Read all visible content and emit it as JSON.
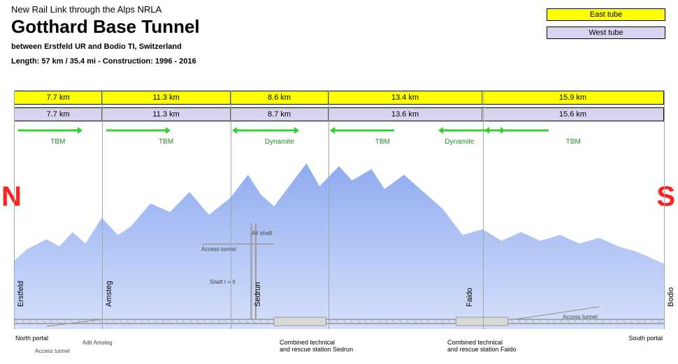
{
  "header": {
    "subtitle": "New Rail Link through the Alps NRLA",
    "title": "Gotthard Base Tunnel",
    "meta_line1": "between Erstfeld UR and Bodio TI, Switzerland",
    "meta_line2": "Length: 57 km / 35.4 mi   -   Construction: 1996 - 2016"
  },
  "legend": {
    "east": "East tube",
    "west": "West tube",
    "east_color": "#ffff00",
    "west_color": "#d8d4f0"
  },
  "east_segments": [
    {
      "km": "7.7 km",
      "frac": 0.135
    },
    {
      "km": "11.3 km",
      "frac": 0.198
    },
    {
      "km": "8.6 km",
      "frac": 0.151
    },
    {
      "km": "13.4 km",
      "frac": 0.237
    },
    {
      "km": "15.9 km",
      "frac": 0.279
    }
  ],
  "west_segments": [
    {
      "km": "7.7 km",
      "frac": 0.135
    },
    {
      "km": "11.3 km",
      "frac": 0.198
    },
    {
      "km": "8.7 km",
      "frac": 0.151
    },
    {
      "km": "13.6 km",
      "frac": 0.237
    },
    {
      "km": "15.6 km",
      "frac": 0.279
    }
  ],
  "method_segments": [
    {
      "label": "TBM",
      "start": 0.0,
      "end": 0.135,
      "dir": "right"
    },
    {
      "label": "TBM",
      "start": 0.135,
      "end": 0.333,
      "dir": "right"
    },
    {
      "label": "Dynamite",
      "start": 0.333,
      "end": 0.484,
      "dir": "both"
    },
    {
      "label": "TBM",
      "start": 0.484,
      "end": 0.65,
      "dir": "left"
    },
    {
      "label": "Dynamite",
      "start": 0.65,
      "end": 0.721,
      "dir": "both"
    },
    {
      "label": "TBM",
      "start": 0.721,
      "end": 1.0,
      "dir": "left"
    }
  ],
  "vline_positions": [
    0.0,
    0.135,
    0.333,
    0.484,
    0.721,
    1.0
  ],
  "method_color": "#32d032",
  "terrain": {
    "fill_top": "#8fabf0",
    "fill_bottom": "#d6e0fa",
    "points": [
      [
        0.0,
        0.7
      ],
      [
        0.02,
        0.62
      ],
      [
        0.05,
        0.55
      ],
      [
        0.07,
        0.6
      ],
      [
        0.09,
        0.5
      ],
      [
        0.11,
        0.58
      ],
      [
        0.135,
        0.4
      ],
      [
        0.16,
        0.52
      ],
      [
        0.18,
        0.46
      ],
      [
        0.21,
        0.3
      ],
      [
        0.24,
        0.36
      ],
      [
        0.27,
        0.22
      ],
      [
        0.3,
        0.38
      ],
      [
        0.333,
        0.26
      ],
      [
        0.36,
        0.1
      ],
      [
        0.38,
        0.24
      ],
      [
        0.4,
        0.32
      ],
      [
        0.42,
        0.2
      ],
      [
        0.45,
        0.02
      ],
      [
        0.47,
        0.18
      ],
      [
        0.5,
        0.04
      ],
      [
        0.52,
        0.14
      ],
      [
        0.55,
        0.06
      ],
      [
        0.57,
        0.2
      ],
      [
        0.6,
        0.1
      ],
      [
        0.63,
        0.22
      ],
      [
        0.66,
        0.34
      ],
      [
        0.69,
        0.52
      ],
      [
        0.721,
        0.48
      ],
      [
        0.75,
        0.56
      ],
      [
        0.78,
        0.5
      ],
      [
        0.81,
        0.56
      ],
      [
        0.84,
        0.52
      ],
      [
        0.87,
        0.58
      ],
      [
        0.9,
        0.54
      ],
      [
        0.93,
        0.6
      ],
      [
        0.96,
        0.64
      ],
      [
        1.0,
        0.72
      ]
    ]
  },
  "portals": {
    "north": "North portal",
    "south": "South portal"
  },
  "locations": [
    {
      "name": "Erstfeld",
      "x": 0.0
    },
    {
      "name": "Amsteg",
      "x": 0.135
    },
    {
      "name": "Sedrun",
      "x": 0.365
    },
    {
      "name": "Faido",
      "x": 0.69
    },
    {
      "name": "Bodio",
      "x": 1.0
    }
  ],
  "annotations": {
    "air_shaft": "Air shaft",
    "access_tunnel": "Access tunnel",
    "shaft": "Shaft I + II",
    "adit": "Adit Amsteg",
    "station_sedrun": "Combined technical\nand rescue station Sedrun",
    "station_faido": "Combined technical\nand rescue station Faido"
  },
  "compass": {
    "n": "N",
    "s": "S"
  }
}
